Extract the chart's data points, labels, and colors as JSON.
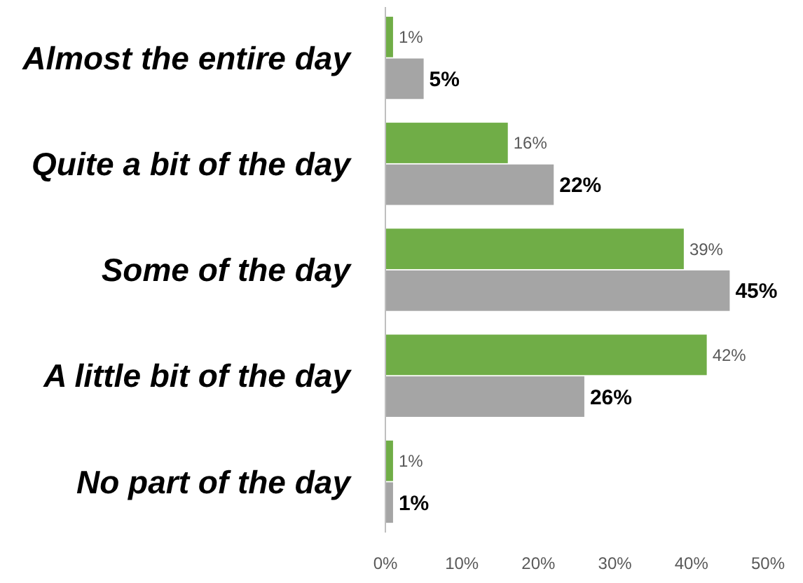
{
  "chart_data": {
    "type": "bar",
    "orientation": "horizontal",
    "categories": [
      "Almost the entire day",
      "Quite a bit of the day",
      "Some of the day",
      "A little bit of the day",
      "No part of the day"
    ],
    "series": [
      {
        "color": "#70ad47",
        "values": [
          1,
          16,
          39,
          42,
          1
        ],
        "value_labels": [
          "1%",
          "16%",
          "39%",
          "42%",
          "1%"
        ]
      },
      {
        "color": "#a5a5a5",
        "values": [
          5,
          22,
          45,
          26,
          1
        ],
        "value_labels": [
          "5%",
          "22%",
          "45%",
          "26%",
          "1%"
        ]
      }
    ],
    "xlim": [
      0,
      50
    ],
    "xticks": [
      {
        "value": 0,
        "label": "0%"
      },
      {
        "value": 10,
        "label": "10%"
      },
      {
        "value": 20,
        "label": "20%"
      },
      {
        "value": 30,
        "label": "30%"
      },
      {
        "value": 40,
        "label": "40%"
      },
      {
        "value": 50,
        "label": "50%"
      }
    ]
  }
}
